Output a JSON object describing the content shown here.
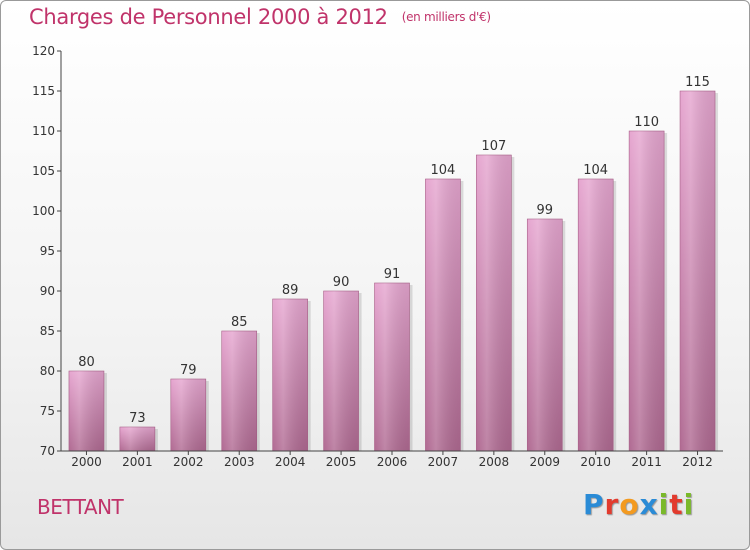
{
  "title": "Charges de Personnel 2000 à 2012",
  "unit_note": "(en milliers d'€)",
  "commune": "BETTANT",
  "logo": {
    "text": "Proxiti",
    "letter_colors": [
      "#2a8bd6",
      "#e23b2e",
      "#f39a1f",
      "#2a8bd6",
      "#7ab92a",
      "#e23b2e",
      "#7ab92a"
    ]
  },
  "colors": {
    "bar_top": "#e6a6d0",
    "bar_bottom": "#b06a92",
    "title": "#c0336a",
    "axis": "#444444"
  },
  "chart_data": {
    "type": "bar",
    "categories": [
      "2000",
      "2001",
      "2002",
      "2003",
      "2004",
      "2005",
      "2006",
      "2007",
      "2008",
      "2009",
      "2010",
      "2011",
      "2012"
    ],
    "values": [
      80,
      73,
      79,
      85,
      89,
      90,
      91,
      104,
      107,
      99,
      104,
      110,
      115
    ],
    "ylim": [
      70,
      120
    ],
    "yticks": [
      70,
      75,
      80,
      85,
      90,
      95,
      100,
      105,
      110,
      115,
      120
    ],
    "grid": false,
    "data_labels": true
  }
}
